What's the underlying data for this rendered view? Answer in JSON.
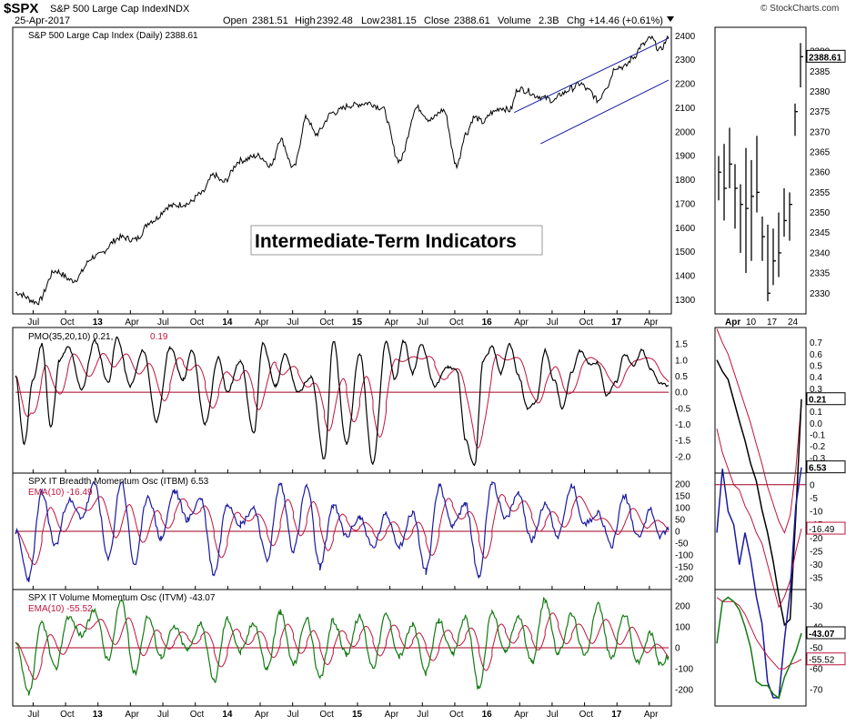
{
  "header": {
    "symbol": "$SPX",
    "name": "S&P 500 Large Cap Index",
    "exchange": "INDX",
    "date": "25-Apr-2017",
    "open_label": "Open",
    "open": "2381.51",
    "high_label": "High",
    "high": "2392.48",
    "low_label": "Low",
    "low": "2381.15",
    "close_label": "Close",
    "close": "2388.61",
    "volume_label": "Volume",
    "volume": "2.3B",
    "chg_label": "Chg",
    "chg": "+14.46 (+0.61%)",
    "watermark": "© StockCharts.com"
  },
  "annotation": "Intermediate-Term Indicators",
  "colors": {
    "price": "#000000",
    "signal": "#c0143c",
    "itbm": "#1a1aa0",
    "itvm": "#127a12",
    "zero": "#a00020",
    "trend": "#1a1aa0"
  },
  "chart_data": [
    {
      "type": "line",
      "title": "S&P 500 Large Cap Index (Daily) 2388.61",
      "x_labels": [
        "Jul",
        "Oct",
        "13",
        "Apr",
        "Jul",
        "Oct",
        "14",
        "Apr",
        "Jul",
        "Oct",
        "15",
        "Apr",
        "Jul",
        "Oct",
        "16",
        "Apr",
        "Jul",
        "Oct",
        "17",
        "Apr"
      ],
      "y_ticks": [
        2400,
        2300,
        2200,
        2100,
        2000,
        1900,
        1800,
        1700,
        1600,
        1500,
        1400,
        1300
      ],
      "ylim": [
        1260,
        2420
      ],
      "series": [
        {
          "x": [
            0,
            5,
            9,
            13,
            18,
            24,
            27,
            31,
            35,
            39,
            42,
            45,
            47,
            51,
            55,
            58,
            60,
            63,
            66,
            68,
            72,
            76,
            80,
            83,
            87,
            91,
            94,
            97,
            100
          ],
          "y": [
            1330,
            1290,
            1420,
            1380,
            1480,
            1560,
            1550,
            1630,
            1690,
            1700,
            1740,
            1820,
            1790,
            1880,
            1900,
            1860,
            1970,
            1850,
            2060,
            1990,
            2080,
            2110,
            2120,
            2100,
            1880,
            2100,
            2050,
            2090,
            1860
          ]
        },
        {
          "x": [
            100,
            102,
            104,
            106,
            108,
            110,
            112,
            114,
            116,
            118,
            120,
            122,
            124,
            126,
            128,
            130,
            132,
            134,
            136,
            138,
            140,
            142,
            144,
            146,
            148
          ],
          "y": [
            1860,
            1990,
            2060,
            2040,
            2080,
            2100,
            2090,
            2180,
            2170,
            2150,
            2140,
            2130,
            2160,
            2180,
            2200,
            2170,
            2130,
            2190,
            2270,
            2270,
            2310,
            2360,
            2390,
            2340,
            2389
          ]
        }
      ],
      "trendline_upper": {
        "x": [
          113,
          148
        ],
        "y": [
          2080,
          2390
        ]
      },
      "trendline_lower": {
        "x": [
          119,
          148
        ],
        "y": [
          1950,
          2215
        ]
      },
      "current_value": "2388.61"
    },
    {
      "type": "bar",
      "title": "Daily OHLC detail",
      "x_labels": [
        "Apr",
        "10",
        "17",
        "24"
      ],
      "y_ticks": [
        2390,
        2385,
        2380,
        2375,
        2370,
        2365,
        2360,
        2355,
        2350,
        2345,
        2340,
        2335,
        2330
      ],
      "ylim": [
        2326,
        2395
      ],
      "bars": [
        {
          "high": 2364,
          "low": 2353,
          "close": 2360
        },
        {
          "high": 2367,
          "low": 2348,
          "close": 2356
        },
        {
          "high": 2371,
          "low": 2356,
          "close": 2362
        },
        {
          "high": 2362,
          "low": 2346,
          "close": 2356
        },
        {
          "high": 2357,
          "low": 2340,
          "close": 2352
        },
        {
          "high": 2366,
          "low": 2335,
          "close": 2351
        },
        {
          "high": 2363,
          "low": 2338,
          "close": 2354
        },
        {
          "high": 2369,
          "low": 2350,
          "close": 2355
        },
        {
          "high": 2349,
          "low": 2338,
          "close": 2344
        },
        {
          "high": 2347,
          "low": 2328,
          "close": 2330
        },
        {
          "high": 2346,
          "low": 2332,
          "close": 2338
        },
        {
          "high": 2350,
          "low": 2334,
          "close": 2340
        },
        {
          "high": 2356,
          "low": 2344,
          "close": 2348
        },
        {
          "high": 2355,
          "low": 2343,
          "close": 2352
        },
        {
          "high": 2377,
          "low": 2369,
          "close": 2375
        },
        {
          "high": 2392,
          "low": 2381,
          "close": 2388.61
        }
      ],
      "current_value": "2388.61"
    },
    {
      "type": "line",
      "title": "PMO(35,20,10) 0.21,",
      "title_value2": "0.19",
      "y_ticks": [
        "1.5",
        "1.0",
        "0.5",
        "0.0",
        "-0.5",
        "-1.0",
        "-1.5",
        "-2.0"
      ],
      "ylim": [
        -2.4,
        1.9
      ],
      "series": [
        {
          "name": "PMO",
          "color": "#000000",
          "x": [
            0,
            2,
            4,
            6,
            8,
            10,
            12,
            15,
            18,
            21,
            23,
            26,
            29,
            32,
            35,
            38,
            40,
            43,
            46,
            48,
            51,
            54,
            56,
            59,
            61,
            64,
            67,
            70,
            72,
            75,
            78,
            81,
            84,
            86,
            88,
            90,
            92,
            95,
            98,
            100,
            102,
            104,
            106,
            108,
            110,
            112,
            114,
            116,
            118,
            120,
            122,
            124,
            126,
            128,
            130,
            132,
            134,
            136,
            138,
            140,
            142,
            144,
            146,
            148
          ],
          "y": [
            0.5,
            -1.6,
            0.4,
            1.5,
            -1.1,
            1.0,
            1.4,
            0.1,
            1.6,
            0.3,
            1.7,
            0.2,
            1.3,
            -0.9,
            1.4,
            0.4,
            1.3,
            -1.0,
            1.1,
            0.0,
            1.0,
            -1.3,
            1.5,
            0.2,
            1.2,
            0.0,
            0.5,
            -2.1,
            1.6,
            -1.6,
            1.2,
            -2.2,
            1.6,
            0.4,
            1.6,
            0.6,
            1.5,
            0.2,
            0.8,
            0.7,
            -1.5,
            -2.3,
            1.0,
            1.4,
            0.6,
            1.5,
            0.5,
            -0.5,
            -0.3,
            1.3,
            0.4,
            -0.5,
            0.6,
            1.3,
            0.9,
            0.9,
            -0.1,
            0.3,
            1.2,
            0.8,
            1.3,
            0.7,
            0.3,
            0.21
          ]
        },
        {
          "name": "Signal",
          "color": "#c0143c"
        }
      ],
      "side_series": {
        "x": [
          0,
          1,
          2,
          3,
          4,
          5,
          6,
          7,
          8,
          9,
          10,
          11,
          12,
          13,
          14,
          15
        ],
        "pmo": [
          0.55,
          0.45,
          0.38,
          0.2,
          0.02,
          -0.15,
          -0.35,
          -0.5,
          -0.75,
          -0.95,
          -1.2,
          -1.5,
          -1.75,
          -1.7,
          -0.8,
          0.21
        ],
        "sig": [
          0.82,
          0.7,
          0.6,
          0.45,
          0.3,
          0.15,
          0.0,
          -0.18,
          -0.35,
          -0.55,
          -0.7,
          -0.85,
          -0.95,
          -0.8,
          -0.4,
          0.19
        ]
      },
      "side_ticks": [
        "0.7",
        "0.6",
        "0.5",
        "0.4",
        "0.3",
        "0.2",
        "0.1",
        "0.0",
        "-0.1",
        "-0.2",
        "-0.3"
      ],
      "side_ylim": [
        -0.4,
        0.8
      ],
      "current_value": "0.21"
    },
    {
      "type": "line",
      "title": "SPX IT Breadth Momentum Osc (ITBM) 6.53",
      "legend2": "EMA(10) -16.49",
      "y_ticks": [
        "200",
        "150",
        "100",
        "50",
        "0",
        "-50",
        "-100",
        "-150",
        "-200"
      ],
      "ylim": [
        -230,
        230
      ],
      "series": [
        {
          "name": "ITBM",
          "color": "#1a1aa0",
          "x": [
            0,
            3,
            6,
            9,
            12,
            15,
            18,
            21,
            24,
            27,
            30,
            33,
            36,
            39,
            42,
            45,
            48,
            51,
            54,
            57,
            60,
            63,
            66,
            69,
            72,
            75,
            78,
            81,
            84,
            87,
            90,
            93,
            96,
            99,
            102,
            105,
            108,
            111,
            114,
            117,
            120,
            123,
            126,
            129,
            132,
            135,
            138,
            141,
            144,
            146,
            148
          ],
          "y": [
            0,
            -200,
            160,
            -60,
            130,
            60,
            200,
            -120,
            210,
            -140,
            150,
            -30,
            170,
            50,
            140,
            -180,
            120,
            30,
            100,
            -120,
            200,
            -80,
            190,
            -150,
            110,
            -20,
            60,
            -70,
            70,
            -60,
            80,
            -170,
            190,
            30,
            110,
            -190,
            210,
            50,
            160,
            -40,
            120,
            -20,
            190,
            30,
            80,
            -60,
            150,
            -20,
            90,
            -20,
            6.53
          ]
        },
        {
          "name": "EMA(10)",
          "color": "#c0143c"
        }
      ],
      "side_series": {
        "x": [
          0,
          1,
          2,
          3,
          4,
          5,
          6,
          7,
          8,
          9,
          10,
          11,
          12,
          13,
          14,
          15
        ],
        "itbm": [
          -18,
          6,
          -10,
          -15,
          -30,
          -18,
          -28,
          -42,
          -52,
          -74,
          -80,
          -80,
          -58,
          -40,
          -8,
          6.53
        ],
        "ema": [
          21,
          12,
          6,
          0,
          -2,
          -8,
          -12,
          -18,
          -22,
          -30,
          -38,
          -46,
          -42,
          -36,
          -25,
          -16.49
        ]
      },
      "side_ticks": [
        "0",
        "-5",
        "-10",
        "-15",
        "-20",
        "-25",
        "-30",
        "-35"
      ],
      "side_ylim": [
        -38,
        3
      ],
      "current_value": "6.53",
      "ema_value": "-16.49"
    },
    {
      "type": "line",
      "title": "SPX IT Volume Momentum Osc (ITVM) -43.07",
      "legend2": "EMA(10) -55.52",
      "y_ticks": [
        "200",
        "100",
        "0",
        "-100",
        "-200"
      ],
      "ylim": [
        -260,
        260
      ],
      "series": [
        {
          "name": "ITVM",
          "color": "#127a12",
          "x": [
            0,
            3,
            6,
            9,
            12,
            15,
            18,
            21,
            24,
            27,
            30,
            33,
            36,
            39,
            42,
            45,
            48,
            51,
            54,
            57,
            60,
            63,
            66,
            69,
            72,
            75,
            78,
            81,
            84,
            87,
            90,
            93,
            96,
            99,
            102,
            105,
            108,
            111,
            114,
            117,
            120,
            123,
            126,
            129,
            132,
            135,
            138,
            141,
            144,
            146,
            148
          ],
          "y": [
            20,
            -220,
            120,
            -100,
            150,
            60,
            180,
            -60,
            230,
            -120,
            150,
            -40,
            100,
            -10,
            120,
            -160,
            140,
            -20,
            120,
            -100,
            170,
            -80,
            140,
            -150,
            130,
            -30,
            150,
            -90,
            160,
            -40,
            110,
            -120,
            130,
            -30,
            150,
            -190,
            170,
            -20,
            150,
            -70,
            230,
            -30,
            160,
            -40,
            210,
            -50,
            160,
            -70,
            70,
            -80,
            -43.07
          ]
        },
        {
          "name": "EMA(10)",
          "color": "#c0143c"
        }
      ],
      "side_series": {
        "x": [
          0,
          1,
          2,
          3,
          4,
          5,
          6,
          7,
          8,
          9,
          10,
          11,
          12,
          13,
          14,
          15
        ],
        "itvm": [
          -48,
          -28,
          -26,
          -28,
          -32,
          -40,
          -50,
          -66,
          -68,
          -68,
          -72,
          -74,
          -64,
          -58,
          -52,
          -43.07
        ],
        "ema": [
          -26,
          -28,
          -28,
          -28,
          -30,
          -34,
          -40,
          -46,
          -50,
          -54,
          -57,
          -60,
          -60,
          -58,
          -57,
          -55.52
        ]
      },
      "side_ticks": [
        "-30",
        "-40",
        "-50",
        "-60",
        "-70"
      ],
      "side_ylim": [
        -76,
        -24
      ],
      "current_value": "-43.07",
      "ema_value": "-55.52"
    }
  ]
}
